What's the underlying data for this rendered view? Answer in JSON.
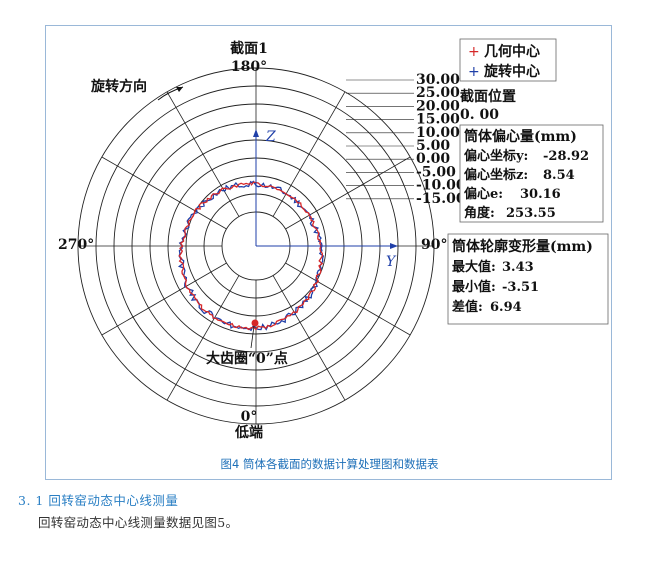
{
  "figure": {
    "section_title": "截面1",
    "angle_labels": {
      "top": "180°",
      "right": "90°",
      "left": "270°",
      "bottom": "0°"
    },
    "bottom_label": "低端",
    "rotation_label": "旋转方向",
    "point_label": "大齿圈“0”点",
    "z_axis": "Z",
    "y_axis": "Y",
    "ring_labels": [
      "30.00",
      "25.00",
      "20.00",
      "15.00",
      "10.00",
      "5.00",
      "0.00",
      "-5.00",
      "-10.00",
      "-15.00"
    ],
    "legend": [
      {
        "symbol": "+",
        "label": "几何中心",
        "color": "#d62728"
      },
      {
        "symbol": "+",
        "label": "旋转中心",
        "color": "#1f3fa8"
      }
    ],
    "section_position": {
      "label": "截面位置",
      "value": "0. 00"
    },
    "eccentricity": {
      "title": "筒体偏心量(mm)",
      "y_label": "偏心坐标y:",
      "y_value": "-28.92",
      "z_label": "偏心坐标z:",
      "z_value": "8.54",
      "e_label": "偏心e:",
      "e_value": "30.16",
      "angle_label": "角度:",
      "angle_value": "253.55"
    },
    "deformation": {
      "title": "筒体轮廓变形量(mm)",
      "max_label": "最大值:",
      "max_value": "3.43",
      "min_label": "最小值:",
      "min_value": "-3.51",
      "diff_label": "差值:",
      "diff_value": "6.94"
    },
    "colors": {
      "trace_blue": "#1f3fa8",
      "trace_red": "#d62728",
      "grid": "#222222"
    }
  },
  "caption": "图4    筒体各截面的数据计算处理图和数据表",
  "section_heading": "3. 1   回转窑动态中心线测量",
  "body_text": "回转窑动态中心线测量数据见图5。"
}
